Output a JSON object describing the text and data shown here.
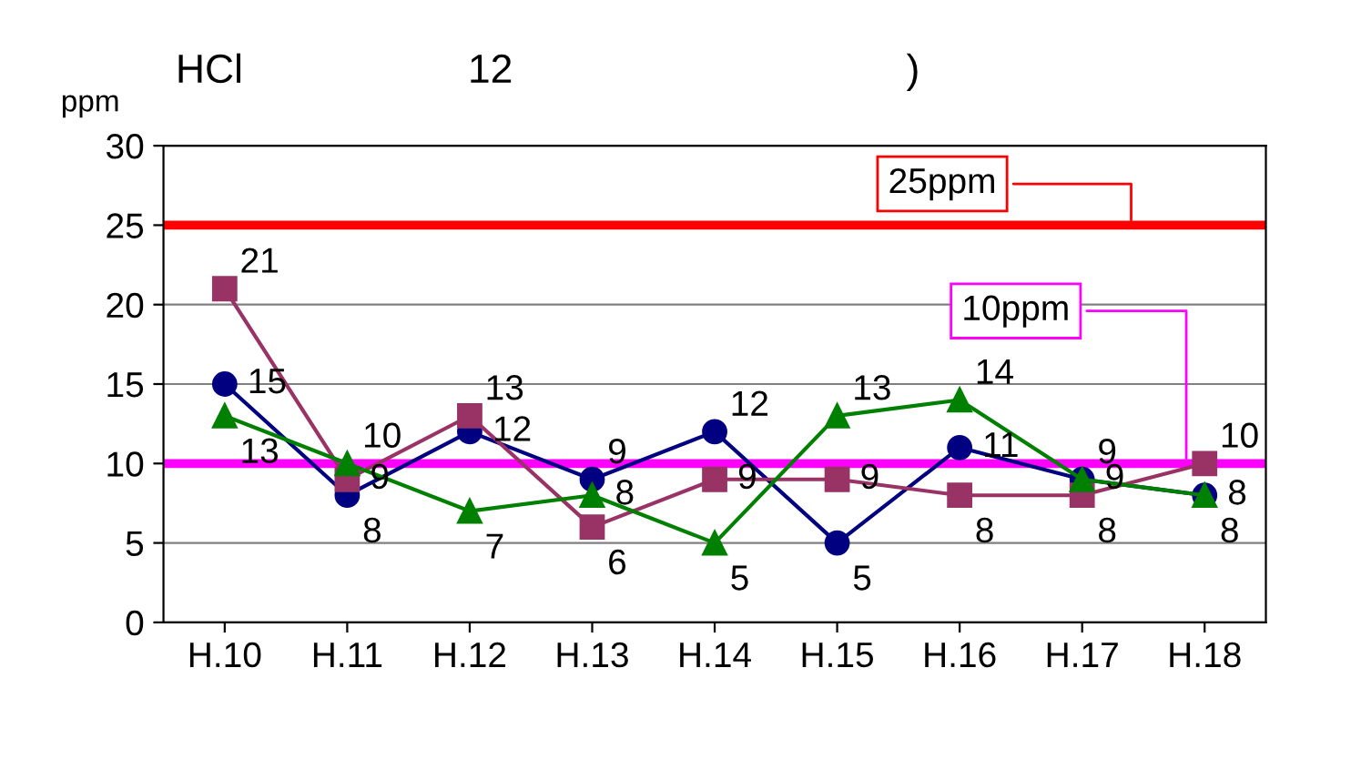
{
  "chart_data": {
    "type": "line",
    "title": "HCl                    12                                   )",
    "ylabel": "ppm",
    "categories": [
      "H.10",
      "H.11",
      "H.12",
      "H.13",
      "H.14",
      "H.15",
      "H.16",
      "H.17",
      "H.18"
    ],
    "series": [
      {
        "color": "#000080",
        "marker": "circle",
        "values": [
          15,
          8,
          12,
          9,
          12,
          5,
          11,
          9,
          8
        ]
      },
      {
        "color": "#993366",
        "marker": "square",
        "values": [
          21,
          9,
          13,
          6,
          9,
          9,
          8,
          8,
          10
        ]
      },
      {
        "color": "#008000",
        "marker": "triangle",
        "values": [
          13,
          10,
          7,
          8,
          5,
          13,
          14,
          9,
          8
        ]
      }
    ],
    "ylim": [
      0,
      30
    ],
    "yticks": [
      0,
      5,
      10,
      15,
      20,
      25,
      30
    ],
    "grid": "y",
    "data_labels": true,
    "ref_lines": [
      {
        "axis": "y",
        "value": 25,
        "label": "25ppm",
        "color": "#ff0000"
      },
      {
        "axis": "y",
        "value": 10,
        "label": "10ppm",
        "color": "#ff00ff"
      }
    ]
  }
}
